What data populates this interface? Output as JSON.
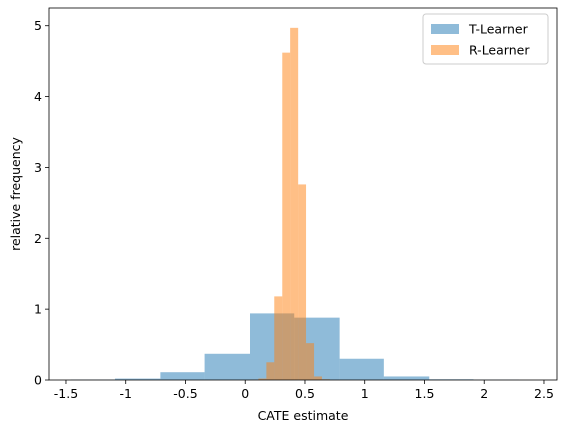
{
  "chart_data": {
    "type": "histogram",
    "xlabel": "CATE estimate",
    "ylabel": "relative frequency",
    "xlim": [
      -1.642,
      2.609
    ],
    "ylim": [
      0,
      5.25
    ],
    "xticks": [
      -1.5,
      -1.0,
      -0.5,
      0.0,
      0.5,
      1.0,
      1.5,
      2.0,
      2.5
    ],
    "yticks": [
      0,
      1,
      2,
      3,
      4,
      5
    ],
    "legend": "upper right",
    "alpha": 0.5,
    "series": [
      {
        "name": "T-Learner",
        "color": "#1f77b4",
        "bins": [
          -1.46,
          -1.09,
          -0.71,
          -0.34,
          0.04,
          0.41,
          0.79,
          1.16,
          1.54,
          1.91,
          2.29
        ],
        "values": [
          0.005,
          0.02,
          0.11,
          0.37,
          0.94,
          0.88,
          0.3,
          0.05,
          0.01,
          0.003
        ]
      },
      {
        "name": "R-Learner",
        "color": "#ff7f0e",
        "bins": [
          0.044,
          0.11,
          0.177,
          0.243,
          0.31,
          0.376,
          0.443,
          0.509,
          0.576,
          0.642,
          0.708
        ],
        "values": [
          0.005,
          0.02,
          0.25,
          1.18,
          4.62,
          4.97,
          2.76,
          0.52,
          0.05,
          0.01
        ]
      }
    ]
  }
}
